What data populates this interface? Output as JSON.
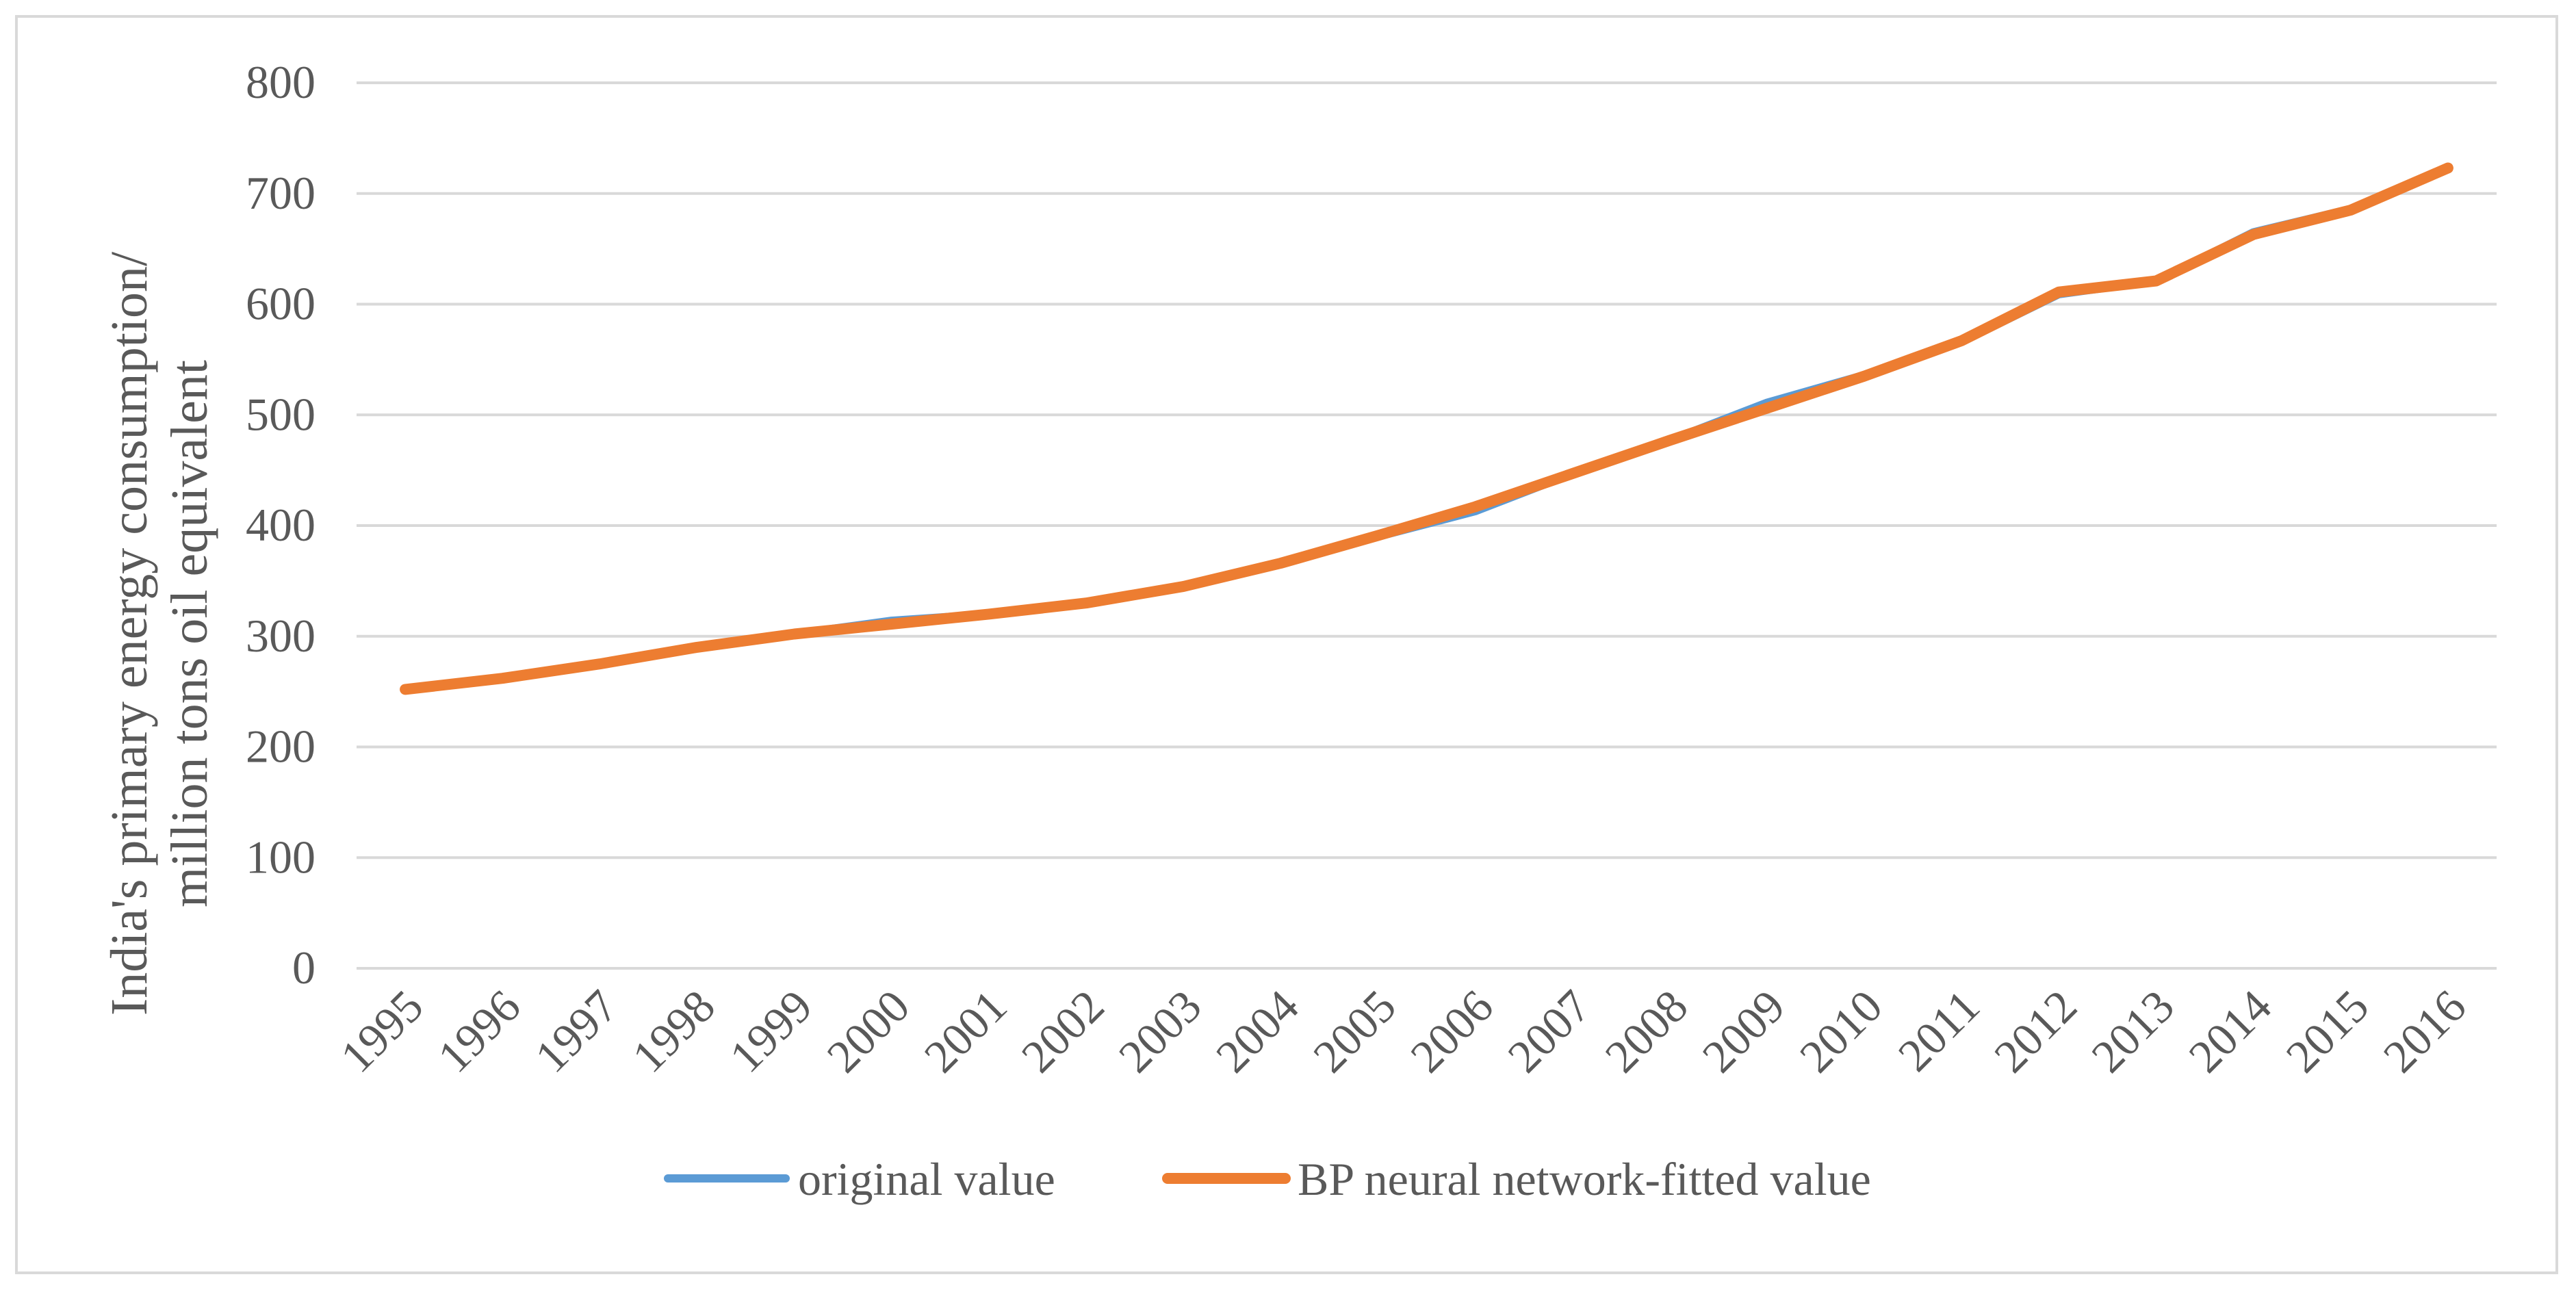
{
  "chart_data": {
    "type": "line",
    "title": "",
    "ylabel_lines": [
      "India's primary energy consumption/",
      "million tons oil equivalent"
    ],
    "xlabel": "",
    "ylim": [
      0,
      800
    ],
    "yticks": [
      "0",
      "100",
      "200",
      "300",
      "400",
      "500",
      "600",
      "700",
      "800"
    ],
    "ytick_values": [
      0,
      100,
      200,
      300,
      400,
      500,
      600,
      700,
      800
    ],
    "categories": [
      "1995",
      "1996",
      "1997",
      "1998",
      "1999",
      "2000",
      "2001",
      "2002",
      "2003",
      "2004",
      "2005",
      "2006",
      "2007",
      "2008",
      "2009",
      "2010",
      "2011",
      "2012",
      "2013",
      "2014",
      "2015",
      "2016"
    ],
    "grid": true,
    "legend_position": "bottom",
    "series": [
      {
        "name": "original value",
        "color": "#5b9bd5",
        "values": [
          252,
          262,
          275,
          290,
          302,
          314,
          320,
          330,
          345,
          366,
          390,
          413,
          447,
          477,
          511,
          536,
          566,
          609,
          621,
          665,
          686,
          724
        ]
      },
      {
        "name": "BP neural network-fitted value",
        "color": "#ed7d31",
        "values": [
          252,
          262,
          275,
          290,
          302,
          311,
          320,
          330,
          345,
          366,
          391,
          417,
          447,
          477,
          506,
          535,
          567,
          611,
          621,
          663,
          685,
          723
        ]
      }
    ]
  }
}
